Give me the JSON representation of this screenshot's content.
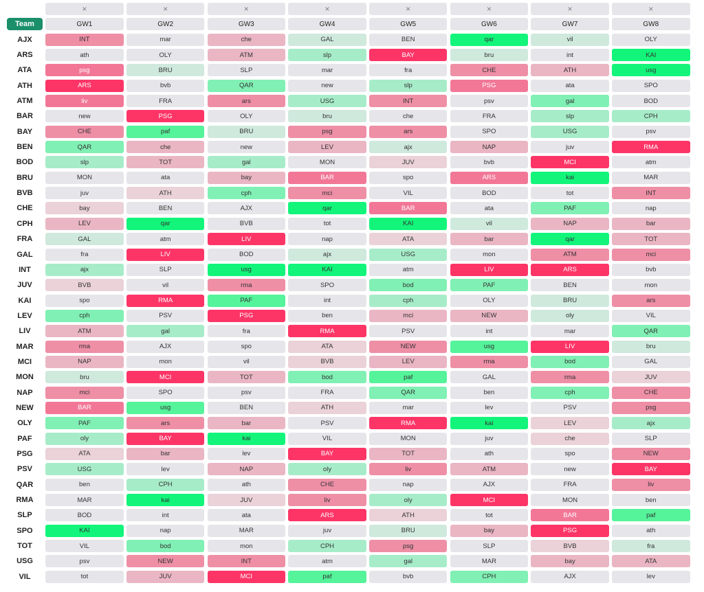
{
  "header": {
    "remove_symbol": "×",
    "team_label": "Team",
    "gameweeks": [
      "GW1",
      "GW2",
      "GW3",
      "GW4",
      "GW5",
      "GW6",
      "GW7",
      "GW8"
    ]
  },
  "palette": {
    "g5": "#12f57a",
    "g4": "#55f39a",
    "g3": "#80f0b4",
    "g2": "#a7ecc9",
    "g1": "#cfe9dd",
    "n": "#e6e6ea",
    "r1": "#ead2d8",
    "r2": "#eab6c3",
    "r3": "#ee8fa6",
    "r4": "#f27797",
    "r5": "#fd3567"
  },
  "rows": [
    {
      "team": "AJX",
      "fixtures": [
        [
          "INT",
          "r3"
        ],
        [
          "mar",
          "n"
        ],
        [
          "che",
          "r2"
        ],
        [
          "GAL",
          "g1"
        ],
        [
          "BEN",
          "n"
        ],
        [
          "qar",
          "g5"
        ],
        [
          "vil",
          "g1"
        ],
        [
          "OLY",
          "n"
        ]
      ]
    },
    {
      "team": "ARS",
      "fixtures": [
        [
          "ath",
          "n"
        ],
        [
          "OLY",
          "n"
        ],
        [
          "ATM",
          "r2"
        ],
        [
          "slp",
          "g2"
        ],
        [
          "BAY",
          "r5"
        ],
        [
          "bru",
          "g1"
        ],
        [
          "int",
          "n"
        ],
        [
          "KAI",
          "g5"
        ]
      ]
    },
    {
      "team": "ATA",
      "fixtures": [
        [
          "psg",
          "r4"
        ],
        [
          "BRU",
          "g1"
        ],
        [
          "SLP",
          "n"
        ],
        [
          "mar",
          "n"
        ],
        [
          "fra",
          "n"
        ],
        [
          "CHE",
          "r3"
        ],
        [
          "ATH",
          "r2"
        ],
        [
          "usg",
          "g5"
        ]
      ]
    },
    {
      "team": "ATH",
      "fixtures": [
        [
          "ARS",
          "r5"
        ],
        [
          "bvb",
          "n"
        ],
        [
          "QAR",
          "g3"
        ],
        [
          "new",
          "n"
        ],
        [
          "slp",
          "g2"
        ],
        [
          "PSG",
          "r4"
        ],
        [
          "ata",
          "n"
        ],
        [
          "SPO",
          "n"
        ]
      ]
    },
    {
      "team": "ATM",
      "fixtures": [
        [
          "liv",
          "r4"
        ],
        [
          "FRA",
          "n"
        ],
        [
          "ars",
          "r3"
        ],
        [
          "USG",
          "g2"
        ],
        [
          "INT",
          "r3"
        ],
        [
          "psv",
          "n"
        ],
        [
          "gal",
          "g3"
        ],
        [
          "BOD",
          "n"
        ]
      ]
    },
    {
      "team": "BAR",
      "fixtures": [
        [
          "new",
          "n"
        ],
        [
          "PSG",
          "r5"
        ],
        [
          "OLY",
          "n"
        ],
        [
          "bru",
          "g1"
        ],
        [
          "che",
          "n"
        ],
        [
          "FRA",
          "n"
        ],
        [
          "slp",
          "g2"
        ],
        [
          "CPH",
          "g2"
        ]
      ]
    },
    {
      "team": "BAY",
      "fixtures": [
        [
          "CHE",
          "r3"
        ],
        [
          "paf",
          "g4"
        ],
        [
          "BRU",
          "g1"
        ],
        [
          "psg",
          "r3"
        ],
        [
          "ars",
          "r3"
        ],
        [
          "SPO",
          "n"
        ],
        [
          "USG",
          "g2"
        ],
        [
          "psv",
          "n"
        ]
      ]
    },
    {
      "team": "BEN",
      "fixtures": [
        [
          "QAR",
          "g3"
        ],
        [
          "che",
          "r2"
        ],
        [
          "new",
          "n"
        ],
        [
          "LEV",
          "r2"
        ],
        [
          "ajx",
          "g1"
        ],
        [
          "NAP",
          "r2"
        ],
        [
          "juv",
          "n"
        ],
        [
          "RMA",
          "r5"
        ]
      ]
    },
    {
      "team": "BOD",
      "fixtures": [
        [
          "slp",
          "g2"
        ],
        [
          "TOT",
          "r2"
        ],
        [
          "gal",
          "g2"
        ],
        [
          "MON",
          "n"
        ],
        [
          "JUV",
          "r1"
        ],
        [
          "bvb",
          "n"
        ],
        [
          "MCI",
          "r5"
        ],
        [
          "atm",
          "n"
        ]
      ]
    },
    {
      "team": "BRU",
      "fixtures": [
        [
          "MON",
          "n"
        ],
        [
          "ata",
          "n"
        ],
        [
          "bay",
          "r2"
        ],
        [
          "BAR",
          "r4"
        ],
        [
          "spo",
          "n"
        ],
        [
          "ARS",
          "r4"
        ],
        [
          "kai",
          "g5"
        ],
        [
          "MAR",
          "n"
        ]
      ]
    },
    {
      "team": "BVB",
      "fixtures": [
        [
          "juv",
          "n"
        ],
        [
          "ATH",
          "r1"
        ],
        [
          "cph",
          "g3"
        ],
        [
          "mci",
          "r3"
        ],
        [
          "VIL",
          "n"
        ],
        [
          "BOD",
          "n"
        ],
        [
          "tot",
          "n"
        ],
        [
          "INT",
          "r3"
        ]
      ]
    },
    {
      "team": "CHE",
      "fixtures": [
        [
          "bay",
          "r1"
        ],
        [
          "BEN",
          "n"
        ],
        [
          "AJX",
          "n"
        ],
        [
          "qar",
          "g5"
        ],
        [
          "BAR",
          "r4"
        ],
        [
          "ata",
          "n"
        ],
        [
          "PAF",
          "g3"
        ],
        [
          "nap",
          "n"
        ]
      ]
    },
    {
      "team": "CPH",
      "fixtures": [
        [
          "LEV",
          "r2"
        ],
        [
          "qar",
          "g5"
        ],
        [
          "BVB",
          "n"
        ],
        [
          "tot",
          "n"
        ],
        [
          "KAI",
          "g5"
        ],
        [
          "vil",
          "g1"
        ],
        [
          "NAP",
          "r2"
        ],
        [
          "bar",
          "r2"
        ]
      ]
    },
    {
      "team": "FRA",
      "fixtures": [
        [
          "GAL",
          "g1"
        ],
        [
          "atm",
          "n"
        ],
        [
          "LIV",
          "r5"
        ],
        [
          "nap",
          "n"
        ],
        [
          "ATA",
          "r1"
        ],
        [
          "bar",
          "r2"
        ],
        [
          "qar",
          "g5"
        ],
        [
          "TOT",
          "r2"
        ]
      ]
    },
    {
      "team": "GAL",
      "fixtures": [
        [
          "fra",
          "n"
        ],
        [
          "LIV",
          "r5"
        ],
        [
          "BOD",
          "n"
        ],
        [
          "ajx",
          "g1"
        ],
        [
          "USG",
          "g2"
        ],
        [
          "mon",
          "n"
        ],
        [
          "ATM",
          "r3"
        ],
        [
          "mci",
          "r3"
        ]
      ]
    },
    {
      "team": "INT",
      "fixtures": [
        [
          "ajx",
          "g2"
        ],
        [
          "SLP",
          "n"
        ],
        [
          "usg",
          "g5"
        ],
        [
          "KAI",
          "g5"
        ],
        [
          "atm",
          "n"
        ],
        [
          "LIV",
          "r5"
        ],
        [
          "ARS",
          "r5"
        ],
        [
          "bvb",
          "n"
        ]
      ]
    },
    {
      "team": "JUV",
      "fixtures": [
        [
          "BVB",
          "r1"
        ],
        [
          "vil",
          "n"
        ],
        [
          "rma",
          "r3"
        ],
        [
          "SPO",
          "n"
        ],
        [
          "bod",
          "g3"
        ],
        [
          "PAF",
          "g3"
        ],
        [
          "BEN",
          "n"
        ],
        [
          "mon",
          "n"
        ]
      ]
    },
    {
      "team": "KAI",
      "fixtures": [
        [
          "spo",
          "n"
        ],
        [
          "RMA",
          "r5"
        ],
        [
          "PAF",
          "g4"
        ],
        [
          "int",
          "n"
        ],
        [
          "cph",
          "g2"
        ],
        [
          "OLY",
          "n"
        ],
        [
          "BRU",
          "g1"
        ],
        [
          "ars",
          "r3"
        ]
      ]
    },
    {
      "team": "LEV",
      "fixtures": [
        [
          "cph",
          "g3"
        ],
        [
          "PSV",
          "n"
        ],
        [
          "PSG",
          "r5"
        ],
        [
          "ben",
          "n"
        ],
        [
          "mci",
          "r2"
        ],
        [
          "NEW",
          "r2"
        ],
        [
          "oly",
          "g1"
        ],
        [
          "VIL",
          "n"
        ]
      ]
    },
    {
      "team": "LIV",
      "fixtures": [
        [
          "ATM",
          "r2"
        ],
        [
          "gal",
          "g2"
        ],
        [
          "fra",
          "n"
        ],
        [
          "RMA",
          "r5"
        ],
        [
          "PSV",
          "n"
        ],
        [
          "int",
          "n"
        ],
        [
          "mar",
          "n"
        ],
        [
          "QAR",
          "g3"
        ]
      ]
    },
    {
      "team": "MAR",
      "fixtures": [
        [
          "rma",
          "r3"
        ],
        [
          "AJX",
          "n"
        ],
        [
          "spo",
          "n"
        ],
        [
          "ATA",
          "r1"
        ],
        [
          "NEW",
          "r3"
        ],
        [
          "usg",
          "g4"
        ],
        [
          "LIV",
          "r5"
        ],
        [
          "bru",
          "g1"
        ]
      ]
    },
    {
      "team": "MCI",
      "fixtures": [
        [
          "NAP",
          "r2"
        ],
        [
          "mon",
          "n"
        ],
        [
          "vil",
          "n"
        ],
        [
          "BVB",
          "r1"
        ],
        [
          "LEV",
          "r2"
        ],
        [
          "rma",
          "r3"
        ],
        [
          "bod",
          "g3"
        ],
        [
          "GAL",
          "n"
        ]
      ]
    },
    {
      "team": "MON",
      "fixtures": [
        [
          "bru",
          "g1"
        ],
        [
          "MCI",
          "r5"
        ],
        [
          "TOT",
          "r2"
        ],
        [
          "bod",
          "g3"
        ],
        [
          "paf",
          "g4"
        ],
        [
          "GAL",
          "n"
        ],
        [
          "rma",
          "r3"
        ],
        [
          "JUV",
          "r1"
        ]
      ]
    },
    {
      "team": "NAP",
      "fixtures": [
        [
          "mci",
          "r3"
        ],
        [
          "SPO",
          "n"
        ],
        [
          "psv",
          "n"
        ],
        [
          "FRA",
          "n"
        ],
        [
          "QAR",
          "g3"
        ],
        [
          "ben",
          "n"
        ],
        [
          "cph",
          "g3"
        ],
        [
          "CHE",
          "r3"
        ]
      ]
    },
    {
      "team": "NEW",
      "fixtures": [
        [
          "BAR",
          "r4"
        ],
        [
          "usg",
          "g4"
        ],
        [
          "BEN",
          "n"
        ],
        [
          "ATH",
          "r1"
        ],
        [
          "mar",
          "n"
        ],
        [
          "lev",
          "n"
        ],
        [
          "PSV",
          "n"
        ],
        [
          "psg",
          "r3"
        ]
      ]
    },
    {
      "team": "OLY",
      "fixtures": [
        [
          "PAF",
          "g3"
        ],
        [
          "ars",
          "r3"
        ],
        [
          "bar",
          "r2"
        ],
        [
          "PSV",
          "n"
        ],
        [
          "RMA",
          "r5"
        ],
        [
          "kai",
          "g5"
        ],
        [
          "LEV",
          "r1"
        ],
        [
          "ajx",
          "g2"
        ]
      ]
    },
    {
      "team": "PAF",
      "fixtures": [
        [
          "oly",
          "g2"
        ],
        [
          "BAY",
          "r5"
        ],
        [
          "kai",
          "g5"
        ],
        [
          "VIL",
          "n"
        ],
        [
          "MON",
          "n"
        ],
        [
          "juv",
          "n"
        ],
        [
          "che",
          "r1"
        ],
        [
          "SLP",
          "n"
        ]
      ]
    },
    {
      "team": "PSG",
      "fixtures": [
        [
          "ATA",
          "r1"
        ],
        [
          "bar",
          "r2"
        ],
        [
          "lev",
          "n"
        ],
        [
          "BAY",
          "r5"
        ],
        [
          "TOT",
          "r2"
        ],
        [
          "ath",
          "n"
        ],
        [
          "spo",
          "n"
        ],
        [
          "NEW",
          "r3"
        ]
      ]
    },
    {
      "team": "PSV",
      "fixtures": [
        [
          "USG",
          "g2"
        ],
        [
          "lev",
          "n"
        ],
        [
          "NAP",
          "r2"
        ],
        [
          "oly",
          "g2"
        ],
        [
          "liv",
          "r3"
        ],
        [
          "ATM",
          "r2"
        ],
        [
          "new",
          "n"
        ],
        [
          "BAY",
          "r5"
        ]
      ]
    },
    {
      "team": "QAR",
      "fixtures": [
        [
          "ben",
          "n"
        ],
        [
          "CPH",
          "g2"
        ],
        [
          "ath",
          "n"
        ],
        [
          "CHE",
          "r3"
        ],
        [
          "nap",
          "n"
        ],
        [
          "AJX",
          "n"
        ],
        [
          "FRA",
          "n"
        ],
        [
          "liv",
          "r3"
        ]
      ]
    },
    {
      "team": "RMA",
      "fixtures": [
        [
          "MAR",
          "n"
        ],
        [
          "kai",
          "g5"
        ],
        [
          "JUV",
          "r1"
        ],
        [
          "liv",
          "r3"
        ],
        [
          "oly",
          "g2"
        ],
        [
          "MCI",
          "r5"
        ],
        [
          "MON",
          "n"
        ],
        [
          "ben",
          "n"
        ]
      ]
    },
    {
      "team": "SLP",
      "fixtures": [
        [
          "BOD",
          "n"
        ],
        [
          "int",
          "n"
        ],
        [
          "ata",
          "n"
        ],
        [
          "ARS",
          "r5"
        ],
        [
          "ATH",
          "r1"
        ],
        [
          "tot",
          "n"
        ],
        [
          "BAR",
          "r4"
        ],
        [
          "paf",
          "g4"
        ]
      ]
    },
    {
      "team": "SPO",
      "fixtures": [
        [
          "KAI",
          "g5"
        ],
        [
          "nap",
          "n"
        ],
        [
          "MAR",
          "n"
        ],
        [
          "juv",
          "n"
        ],
        [
          "BRU",
          "g1"
        ],
        [
          "bay",
          "r2"
        ],
        [
          "PSG",
          "r5"
        ],
        [
          "ath",
          "n"
        ]
      ]
    },
    {
      "team": "TOT",
      "fixtures": [
        [
          "VIL",
          "n"
        ],
        [
          "bod",
          "g3"
        ],
        [
          "mon",
          "n"
        ],
        [
          "CPH",
          "g2"
        ],
        [
          "psg",
          "r3"
        ],
        [
          "SLP",
          "n"
        ],
        [
          "BVB",
          "r1"
        ],
        [
          "fra",
          "g1"
        ]
      ]
    },
    {
      "team": "USG",
      "fixtures": [
        [
          "psv",
          "n"
        ],
        [
          "NEW",
          "r3"
        ],
        [
          "INT",
          "r3"
        ],
        [
          "atm",
          "n"
        ],
        [
          "gal",
          "g2"
        ],
        [
          "MAR",
          "n"
        ],
        [
          "bay",
          "r2"
        ],
        [
          "ATA",
          "r2"
        ]
      ]
    },
    {
      "team": "VIL",
      "fixtures": [
        [
          "tot",
          "n"
        ],
        [
          "JUV",
          "r2"
        ],
        [
          "MCI",
          "r5"
        ],
        [
          "paf",
          "g4"
        ],
        [
          "bvb",
          "n"
        ],
        [
          "CPH",
          "g3"
        ],
        [
          "AJX",
          "n"
        ],
        [
          "lev",
          "n"
        ]
      ]
    }
  ]
}
